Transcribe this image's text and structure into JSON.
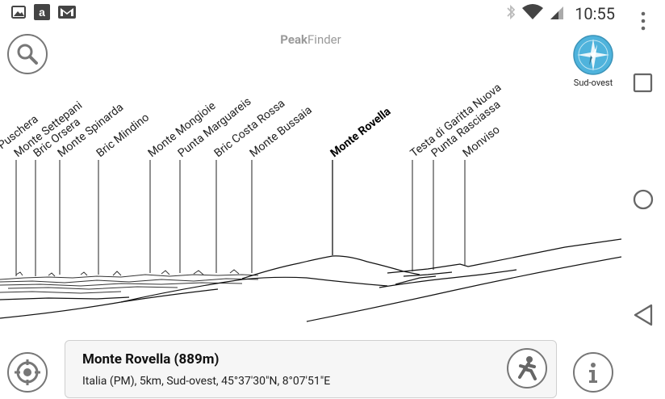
{
  "status_bar": {
    "time": "10:55",
    "left_icons": [
      "image-icon",
      "amazon-icon",
      "gmail-icon"
    ],
    "right_icons": [
      "bluetooth-icon",
      "wifi-icon",
      "signal-icon"
    ]
  },
  "app": {
    "title_bold": "Peak",
    "title_rest": "Finder"
  },
  "compass": {
    "label": "Sud-ovest",
    "color": "#4fb3dc"
  },
  "peaks": [
    {
      "name": "Puschera"
    },
    {
      "name": "Monte Settepani"
    },
    {
      "name": "Bric Orsera"
    },
    {
      "name": "Monte Spinarda"
    },
    {
      "name": "Bric Mindino"
    },
    {
      "name": "Monte Mongioie"
    },
    {
      "name": "Punta Marguareis"
    },
    {
      "name": "Bric Costa Rossa"
    },
    {
      "name": "Monte Bussaia"
    },
    {
      "name": "Monte Rovella",
      "selected": true
    },
    {
      "name": "Testa di Garitta Nuova"
    },
    {
      "name": "Punta Rasciassa"
    },
    {
      "name": "Monviso"
    }
  ],
  "selected_peak": {
    "title": "Monte Rovella (889m)",
    "details": "Italia (PM), 5km, Sud-ovest, 45°37'30\"N, 8°07'51\"E"
  }
}
